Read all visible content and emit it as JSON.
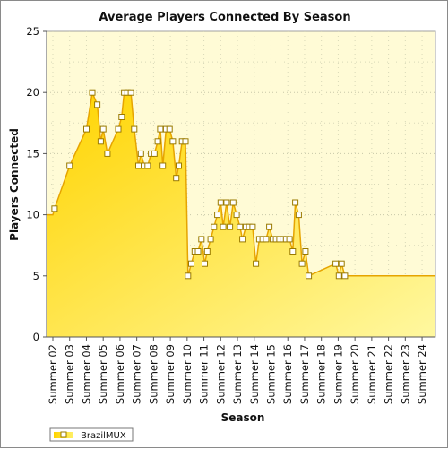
{
  "chart_data": {
    "type": "area",
    "title": "Average Players Connected By Season",
    "xlabel": "Season",
    "ylabel": "Players Connected",
    "ylim": [
      0,
      25
    ],
    "yticks": [
      0,
      5,
      10,
      15,
      20,
      25
    ],
    "grid": true,
    "legend_placement": "bottom-left",
    "fill_color_top": "#fff8a0",
    "fill_color_bottom": "#ffd400",
    "line_color": "#e6a400",
    "plot_background": "#fffbd6",
    "categories": [
      "Summer 02",
      "Summer 03",
      "Summer 04",
      "Summer 05",
      "Summer 06",
      "Summer 07",
      "Summer 08",
      "Summer 09",
      "Summer 10",
      "Summer 11",
      "Summer 12",
      "Summer 13",
      "Summer 14",
      "Summer 15",
      "Summer 16",
      "Summer 17",
      "Summer 18",
      "Summer 19",
      "Summer 20",
      "Summer 21",
      "Summer 22",
      "Summer 23",
      "Summer 24"
    ],
    "series": [
      {
        "name": "BrazilMUX",
        "points": [
          [
            0.0,
            10
          ],
          [
            0.1,
            10.5
          ],
          [
            1.0,
            14
          ],
          [
            2.0,
            17
          ],
          [
            2.35,
            20
          ],
          [
            2.65,
            19
          ],
          [
            2.85,
            16
          ],
          [
            3.0,
            17
          ],
          [
            3.25,
            15
          ],
          [
            3.9,
            17
          ],
          [
            4.1,
            18
          ],
          [
            4.25,
            20
          ],
          [
            4.45,
            20
          ],
          [
            4.65,
            20
          ],
          [
            4.85,
            17
          ],
          [
            5.1,
            14
          ],
          [
            5.25,
            15
          ],
          [
            5.45,
            14
          ],
          [
            5.65,
            14
          ],
          [
            5.85,
            15
          ],
          [
            6.05,
            15
          ],
          [
            6.25,
            16
          ],
          [
            6.4,
            17
          ],
          [
            6.55,
            14
          ],
          [
            6.75,
            17
          ],
          [
            6.95,
            17
          ],
          [
            7.15,
            16
          ],
          [
            7.35,
            13
          ],
          [
            7.5,
            14
          ],
          [
            7.7,
            16
          ],
          [
            7.9,
            16
          ],
          [
            8.05,
            5
          ],
          [
            8.25,
            6
          ],
          [
            8.45,
            7
          ],
          [
            8.65,
            7
          ],
          [
            8.85,
            8
          ],
          [
            9.05,
            6
          ],
          [
            9.2,
            7
          ],
          [
            9.4,
            8
          ],
          [
            9.6,
            9
          ],
          [
            9.8,
            10
          ],
          [
            10.0,
            11
          ],
          [
            10.15,
            9
          ],
          [
            10.35,
            11
          ],
          [
            10.55,
            9
          ],
          [
            10.75,
            11
          ],
          [
            10.95,
            10
          ],
          [
            11.15,
            9
          ],
          [
            11.3,
            8
          ],
          [
            11.5,
            9
          ],
          [
            11.7,
            9
          ],
          [
            11.9,
            9
          ],
          [
            12.1,
            6
          ],
          [
            12.3,
            8
          ],
          [
            12.5,
            8
          ],
          [
            12.7,
            8
          ],
          [
            12.9,
            9
          ],
          [
            13.1,
            8
          ],
          [
            13.3,
            8
          ],
          [
            13.5,
            8
          ],
          [
            13.7,
            8
          ],
          [
            13.9,
            8
          ],
          [
            14.1,
            8
          ],
          [
            14.3,
            7
          ],
          [
            14.45,
            11
          ],
          [
            14.65,
            10
          ],
          [
            14.85,
            6
          ],
          [
            15.05,
            7
          ],
          [
            15.25,
            5
          ],
          [
            16.85,
            6
          ],
          [
            17.05,
            5
          ],
          [
            17.2,
            6
          ],
          [
            17.4,
            5
          ]
        ]
      }
    ]
  }
}
